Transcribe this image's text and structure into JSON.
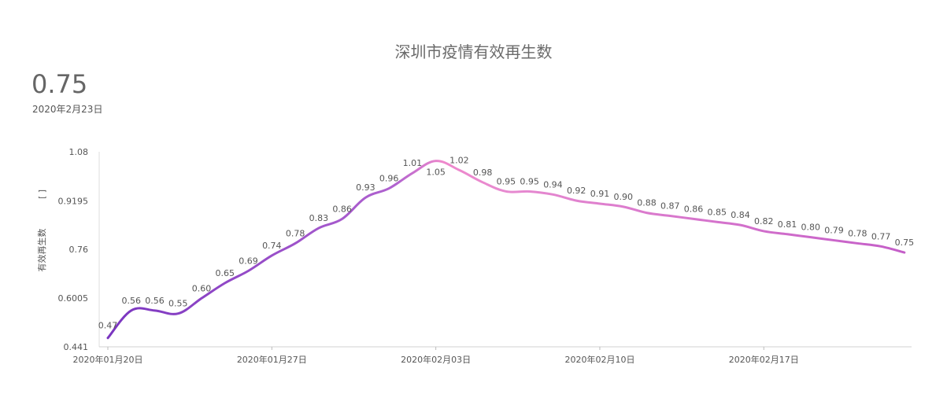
{
  "chart_data": {
    "type": "line",
    "title": "深圳市疫情有效再生数",
    "headline_value": "0.75",
    "headline_date": "2020年2月23日",
    "ylabel": "有效再生数",
    "ylabel_note": "[ ]",
    "ylim": [
      0.441,
      1.08
    ],
    "yticks": [
      "1.08",
      "0.9195",
      "0.76",
      "0.6005",
      "0.441"
    ],
    "xticks": [
      {
        "index": 0,
        "label": "2020年01月20日"
      },
      {
        "index": 7,
        "label": "2020年01月27日"
      },
      {
        "index": 14,
        "label": "2020年02月03日"
      },
      {
        "index": 21,
        "label": "2020年02月10日"
      },
      {
        "index": 28,
        "label": "2020年02月17日"
      }
    ],
    "values": [
      0.47,
      0.56,
      0.56,
      0.55,
      0.6,
      0.65,
      0.69,
      0.74,
      0.78,
      0.83,
      0.86,
      0.93,
      0.96,
      1.01,
      1.05,
      1.02,
      0.98,
      0.95,
      0.95,
      0.94,
      0.92,
      0.91,
      0.9,
      0.88,
      0.87,
      0.86,
      0.85,
      0.84,
      0.82,
      0.81,
      0.8,
      0.79,
      0.78,
      0.77,
      0.75
    ],
    "labels": [
      "0.47",
      "0.56",
      "0.56",
      "0.55",
      "0.60",
      "0.65",
      "0.69",
      "0.74",
      "0.78",
      "0.83",
      "0.86",
      "0.93",
      "0.96",
      "1.01",
      "1.05",
      "1.02",
      "0.98",
      "0.95",
      "0.95",
      "0.94",
      "0.92",
      "0.91",
      "0.90",
      "0.88",
      "0.87",
      "0.86",
      "0.85",
      "0.84",
      "0.82",
      "0.81",
      "0.80",
      "0.79",
      "0.78",
      "0.77",
      "0.75"
    ],
    "colors": {
      "start": "#7a35c0",
      "peak": "#ee88cc",
      "end": "#c45ec8"
    },
    "legend": "none",
    "grid": false
  }
}
